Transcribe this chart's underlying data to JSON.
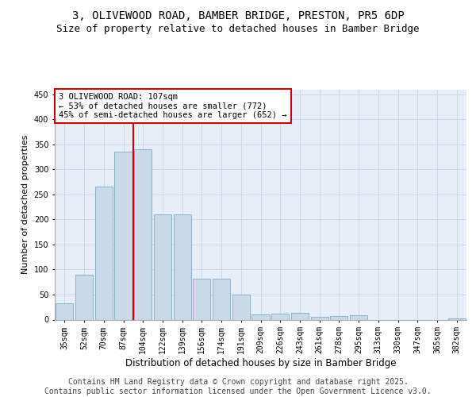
{
  "title_line1": "3, OLIVEWOOD ROAD, BAMBER BRIDGE, PRESTON, PR5 6DP",
  "title_line2": "Size of property relative to detached houses in Bamber Bridge",
  "xlabel": "Distribution of detached houses by size in Bamber Bridge",
  "ylabel": "Number of detached properties",
  "bar_color": "#c9daea",
  "bar_edge_color": "#7aaac8",
  "vline_color": "#cc0000",
  "annotation_text": "3 OLIVEWOOD ROAD: 107sqm\n← 53% of detached houses are smaller (772)\n45% of semi-detached houses are larger (652) →",
  "annotation_box_color": "#ffffff",
  "annotation_box_edge": "#cc0000",
  "categories": [
    "35sqm",
    "52sqm",
    "70sqm",
    "87sqm",
    "104sqm",
    "122sqm",
    "139sqm",
    "156sqm",
    "174sqm",
    "191sqm",
    "209sqm",
    "226sqm",
    "243sqm",
    "261sqm",
    "278sqm",
    "295sqm",
    "313sqm",
    "330sqm",
    "347sqm",
    "365sqm",
    "382sqm"
  ],
  "values": [
    33,
    90,
    265,
    335,
    340,
    210,
    210,
    82,
    82,
    50,
    10,
    12,
    13,
    6,
    7,
    8,
    0,
    0,
    0,
    0,
    2
  ],
  "ylim": [
    0,
    460
  ],
  "yticks": [
    0,
    50,
    100,
    150,
    200,
    250,
    300,
    350,
    400,
    450
  ],
  "grid_color": "#ccd8e8",
  "background_color": "#e8eef8",
  "footer": "Contains HM Land Registry data © Crown copyright and database right 2025.\nContains public sector information licensed under the Open Government Licence v3.0.",
  "title_fontsize": 10,
  "subtitle_fontsize": 9,
  "footer_fontsize": 7,
  "annot_fontsize": 7.5,
  "ylabel_fontsize": 8,
  "xlabel_fontsize": 8.5,
  "tick_fontsize": 7
}
